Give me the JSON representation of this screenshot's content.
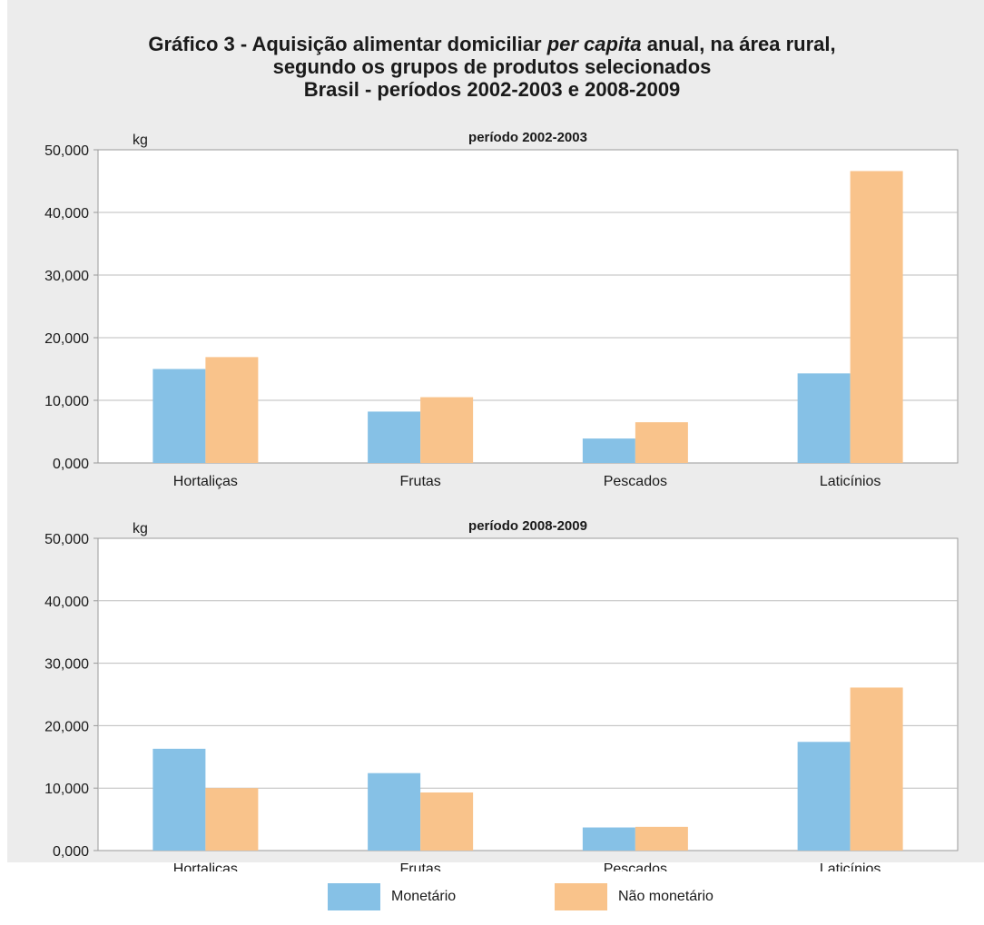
{
  "title_lines": [
    "Gráfico 3 - Aquisição alimentar domiciliar per capita anual, na área rural,",
    "segundo os grupos de produtos selecionados",
    "Brasil - períodos 2002-2003 e 2008-2009"
  ],
  "colors": {
    "monetario": "#86c1e6",
    "nao_monetario": "#f9c38b",
    "panel_bg": "#ececec",
    "plot_bg": "#ffffff",
    "grid": "#bdbdbd"
  },
  "legend": {
    "monetario": "Monetário",
    "nao_monetario": "Não monetário"
  },
  "chart_data": [
    {
      "type": "bar",
      "title": "período 2002-2003",
      "ylabel": "kg",
      "categories": [
        "Hortaliças",
        "Frutas",
        "Pescados",
        "Laticínios"
      ],
      "ylim": [
        0,
        50
      ],
      "yticks": [
        "0,000",
        "10,000",
        "20,000",
        "30,000",
        "40,000",
        "50,000"
      ],
      "grid": true,
      "series": [
        {
          "name": "Monetário",
          "values": [
            15.0,
            8.2,
            3.9,
            14.3
          ]
        },
        {
          "name": "Não monetário",
          "values": [
            16.9,
            10.5,
            6.5,
            46.6
          ]
        }
      ]
    },
    {
      "type": "bar",
      "title": "período 2008-2009",
      "ylabel": "kg",
      "categories": [
        "Hortaliças",
        "Frutas",
        "Pescados",
        "Laticínios"
      ],
      "ylim": [
        0,
        50
      ],
      "yticks": [
        "0,000",
        "10,000",
        "20,000",
        "30,000",
        "40,000",
        "50,000"
      ],
      "grid": true,
      "series": [
        {
          "name": "Monetário",
          "values": [
            16.3,
            12.4,
            3.7,
            17.4
          ]
        },
        {
          "name": "Não monetário",
          "values": [
            10.0,
            9.3,
            3.8,
            26.1
          ]
        }
      ]
    }
  ]
}
